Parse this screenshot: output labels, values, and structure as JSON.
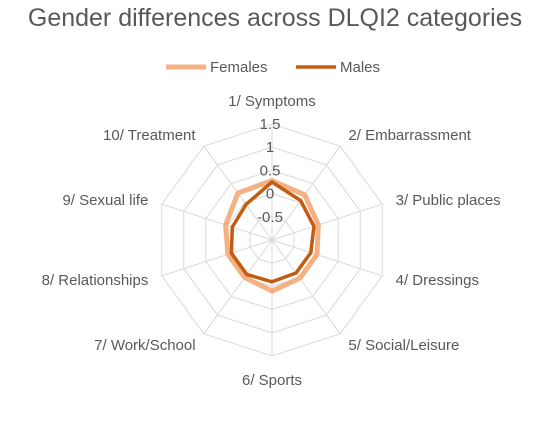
{
  "chart_data": {
    "type": "radar",
    "title": "Gender differences across DLQI2 categories",
    "categories": [
      "1/ Symptoms",
      "2/ Embarrassment",
      "3/ Public places",
      "4/ Dressings",
      "5/ Social/Leisure",
      "6/ Sports",
      "7/ Work/School",
      "8/ Relationships",
      "9/ Sexual life",
      "10/ Treatment"
    ],
    "series": [
      {
        "name": "Females",
        "color": "#f4b183",
        "values": [
          0.28,
          0.2,
          0.05,
          0.02,
          0.02,
          0.1,
          0.0,
          0.0,
          0.05,
          0.25
        ]
      },
      {
        "name": "Males",
        "color": "#c55a11",
        "values": [
          0.25,
          0.05,
          -0.05,
          -0.12,
          -0.12,
          -0.1,
          -0.08,
          -0.08,
          -0.1,
          -0.05
        ]
      }
    ],
    "rlim": [
      -1,
      1.5
    ],
    "ticks": [
      {
        "value": 1.5,
        "label": "1.5"
      },
      {
        "value": 1,
        "label": "1"
      },
      {
        "value": 0.5,
        "label": "0.5"
      },
      {
        "value": 0,
        "label": "0"
      },
      {
        "value": -0.5,
        "label": "-0.5"
      },
      {
        "value": -1,
        "label": ""
      }
    ],
    "legend_position": "top",
    "grid": true
  }
}
